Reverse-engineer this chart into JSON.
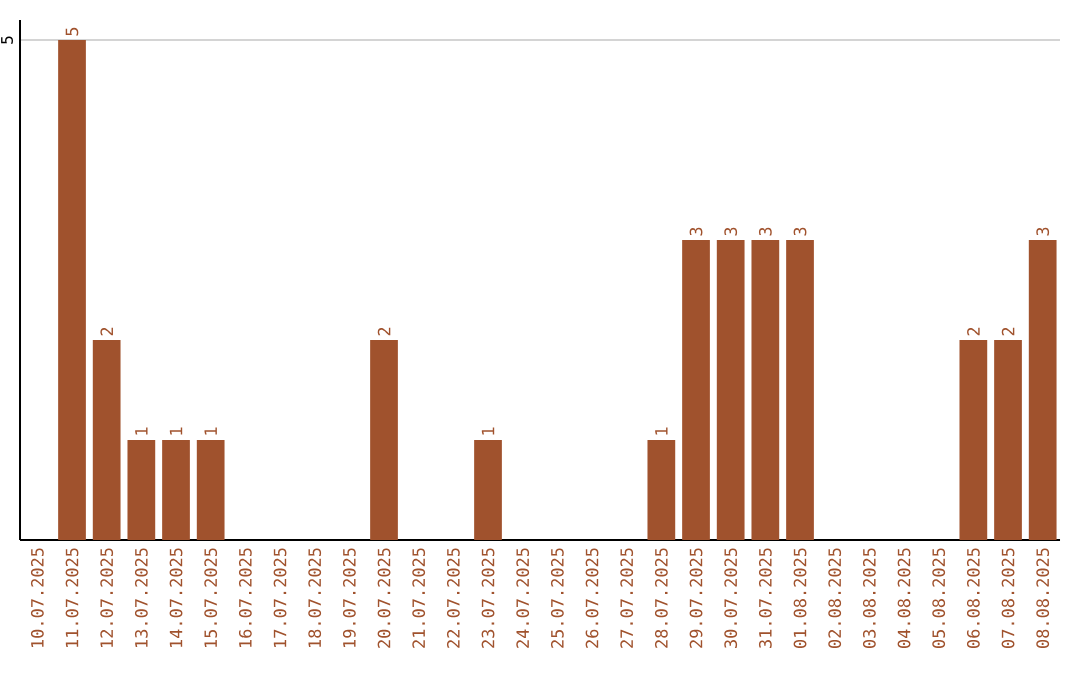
{
  "chart_data": {
    "type": "bar",
    "categories": [
      "10.07.2025",
      "11.07.2025",
      "12.07.2025",
      "13.07.2025",
      "14.07.2025",
      "15.07.2025",
      "16.07.2025",
      "17.07.2025",
      "18.07.2025",
      "19.07.2025",
      "20.07.2025",
      "21.07.2025",
      "22.07.2025",
      "23.07.2025",
      "24.07.2025",
      "25.07.2025",
      "26.07.2025",
      "27.07.2025",
      "28.07.2025",
      "29.07.2025",
      "30.07.2025",
      "31.07.2025",
      "01.08.2025",
      "02.08.2025",
      "03.08.2025",
      "04.08.2025",
      "05.08.2025",
      "06.08.2025",
      "07.08.2025",
      "08.08.2025"
    ],
    "values": [
      0,
      5,
      2,
      1,
      1,
      1,
      0,
      0,
      0,
      0,
      2,
      0,
      0,
      1,
      0,
      0,
      0,
      0,
      1,
      3,
      3,
      3,
      3,
      0,
      0,
      0,
      0,
      2,
      2,
      3
    ],
    "value_labels": [
      null,
      "5",
      "2",
      "1",
      "1",
      "1",
      null,
      null,
      null,
      null,
      "2",
      null,
      null,
      "1",
      null,
      null,
      null,
      null,
      "1",
      "3",
      "3",
      "3",
      "3",
      null,
      null,
      null,
      null,
      "2",
      "2",
      "3"
    ],
    "color": "#a0522d",
    "ylim": [
      0,
      5.2
    ],
    "yticks": [
      5
    ],
    "grid": "y"
  }
}
